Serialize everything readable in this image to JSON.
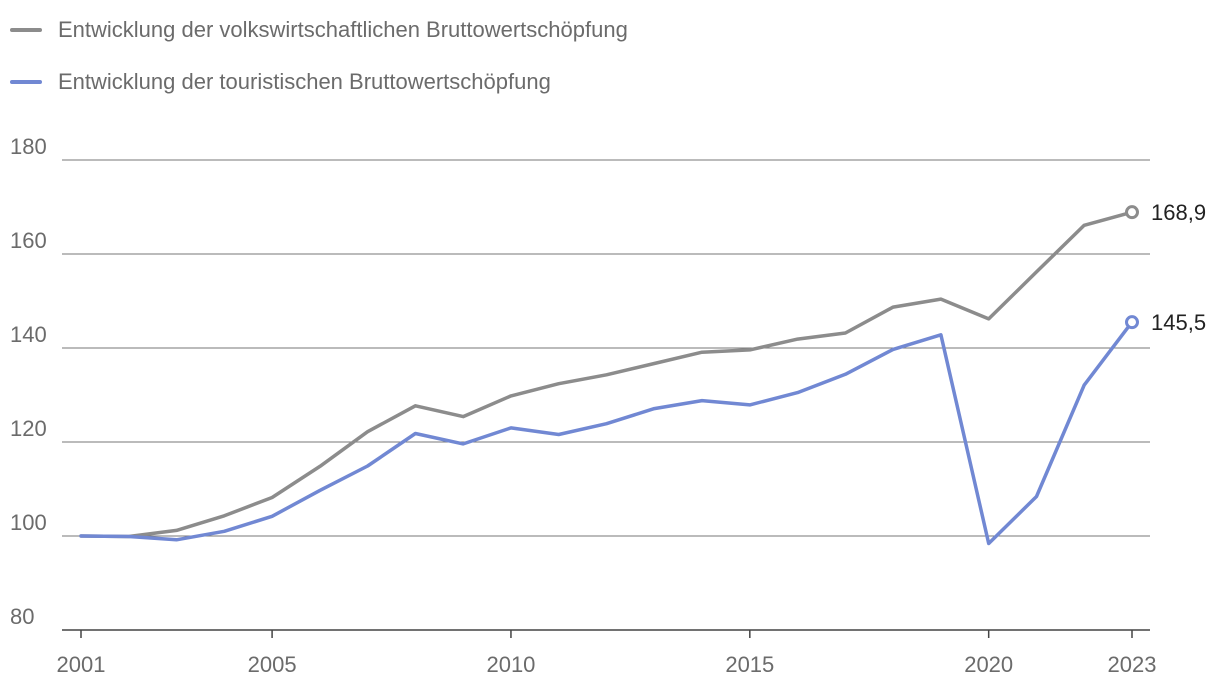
{
  "chart_data": {
    "type": "line",
    "title": "",
    "xlabel": "",
    "ylabel": "",
    "x": [
      2001,
      2002,
      2003,
      2004,
      2005,
      2006,
      2007,
      2008,
      2009,
      2010,
      2011,
      2012,
      2013,
      2014,
      2015,
      2016,
      2017,
      2018,
      2019,
      2020,
      2021,
      2022,
      2023
    ],
    "x_ticks": [
      2001,
      2005,
      2010,
      2015,
      2020,
      2023
    ],
    "ylim": [
      80,
      180
    ],
    "y_ticks": [
      80,
      100,
      120,
      140,
      160,
      180
    ],
    "grid": "horizontal",
    "legend_position": "top-left",
    "series": [
      {
        "name": "Entwicklung der volkswirtschaftlichen Bruttowertschöpfung",
        "color": "#8c8c8c",
        "values": [
          100,
          99.9,
          101.2,
          104.3,
          108.2,
          114.8,
          122.2,
          127.7,
          125.4,
          129.8,
          132.4,
          134.3,
          136.7,
          139.1,
          139.6,
          141.9,
          143.2,
          148.7,
          150.4,
          146.2,
          156.2,
          166.1,
          168.9
        ],
        "end_label": "168,9"
      },
      {
        "name": "Entwicklung der touristischen Bruttowertschöpfung",
        "color": "#7188d3",
        "values": [
          100,
          99.9,
          99.2,
          101.0,
          104.2,
          109.7,
          114.9,
          121.8,
          119.6,
          123.0,
          121.6,
          123.9,
          127.1,
          128.8,
          127.9,
          130.5,
          134.4,
          139.7,
          142.8,
          98.4,
          108.4,
          132.1,
          145.5
        ],
        "end_label": "145,5"
      }
    ]
  }
}
